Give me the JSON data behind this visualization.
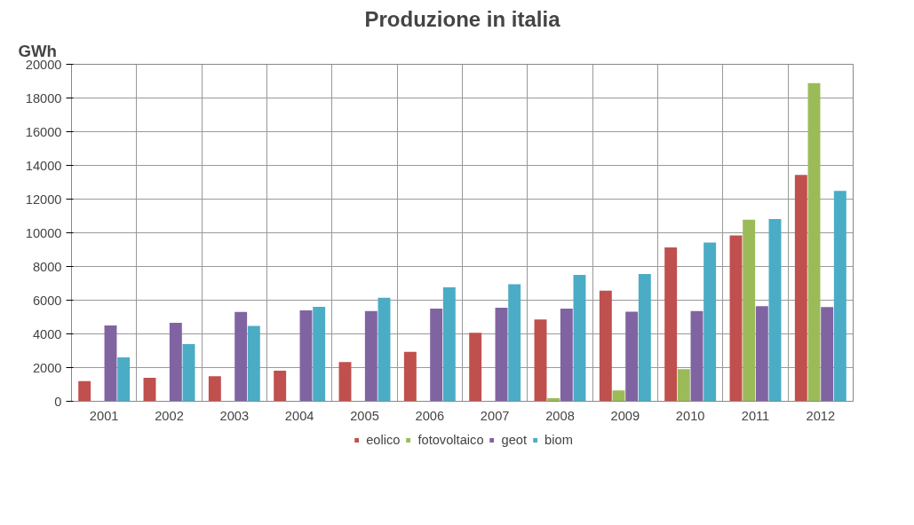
{
  "chart_data": {
    "type": "bar",
    "title": "Produzione in italia",
    "ylabel": "GWh",
    "categories": [
      "2001",
      "2002",
      "2003",
      "2004",
      "2005",
      "2006",
      "2007",
      "2008",
      "2009",
      "2010",
      "2011",
      "2012"
    ],
    "series": [
      {
        "name": "eolico",
        "color": "#c0504d",
        "values": [
          1200,
          1400,
          1490,
          1820,
          2330,
          2940,
          4060,
          4850,
          6570,
          9130,
          9840,
          13430
        ]
      },
      {
        "name": "fotovoltaico",
        "color": "#9bbb59",
        "values": [
          0,
          0,
          0,
          0,
          0,
          0,
          0,
          190,
          650,
          1910,
          10770,
          18880
        ]
      },
      {
        "name": "geot",
        "color": "#8064a2",
        "values": [
          4500,
          4660,
          5300,
          5400,
          5360,
          5500,
          5550,
          5500,
          5310,
          5360,
          5640,
          5590
        ]
      },
      {
        "name": "biom",
        "color": "#4bacc6",
        "values": [
          2600,
          3400,
          4480,
          5600,
          6150,
          6760,
          6950,
          7500,
          7550,
          9420,
          10820,
          12490
        ]
      }
    ],
    "ylim": [
      0,
      20000
    ],
    "yticks": [
      0,
      2000,
      4000,
      6000,
      8000,
      10000,
      12000,
      14000,
      16000,
      18000,
      20000
    ],
    "grid": true,
    "legend": "bottom"
  }
}
